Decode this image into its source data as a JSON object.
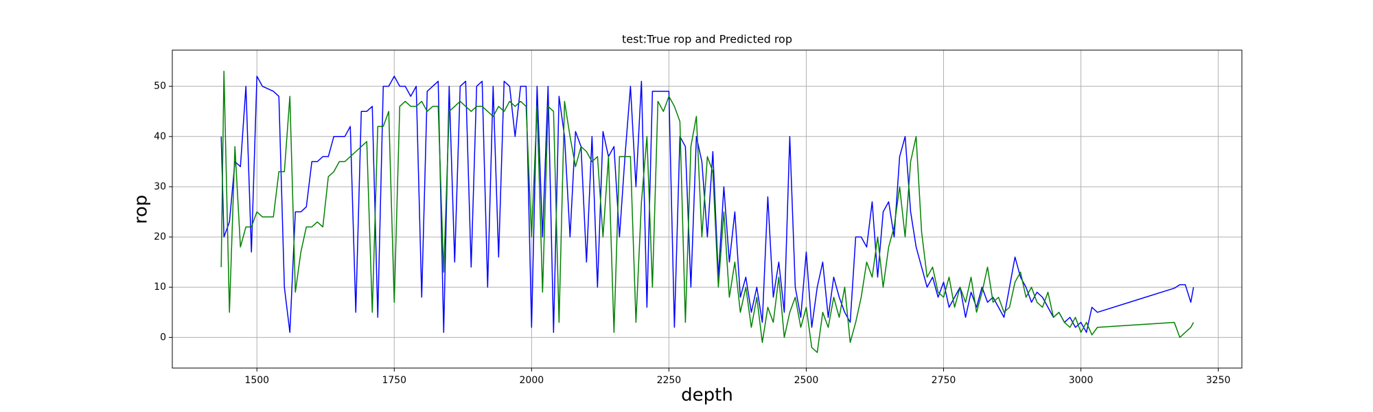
{
  "chart_data": {
    "type": "line",
    "title": "test:True rop and Predicted rop",
    "x_label": "depth",
    "y_label": "rop",
    "xlim": [
      1346,
      3293
    ],
    "xticks": [
      1500,
      1750,
      2000,
      2250,
      2500,
      2750,
      3000,
      3250
    ],
    "ylim": [
      -6.1,
      57.2
    ],
    "yticks": [
      0,
      10,
      20,
      30,
      40,
      50
    ],
    "grid": true,
    "x": [
      1435,
      1440,
      1450,
      1460,
      1470,
      1480,
      1490,
      1500,
      1510,
      1520,
      1530,
      1540,
      1550,
      1560,
      1570,
      1580,
      1590,
      1600,
      1610,
      1620,
      1630,
      1640,
      1650,
      1660,
      1670,
      1680,
      1690,
      1700,
      1710,
      1720,
      1730,
      1740,
      1750,
      1760,
      1770,
      1780,
      1790,
      1800,
      1810,
      1820,
      1830,
      1840,
      1850,
      1860,
      1870,
      1880,
      1890,
      1900,
      1910,
      1920,
      1930,
      1940,
      1950,
      1960,
      1970,
      1980,
      1990,
      2000,
      2010,
      2020,
      2030,
      2040,
      2050,
      2060,
      2070,
      2080,
      2090,
      2100,
      2110,
      2120,
      2130,
      2140,
      2150,
      2160,
      2170,
      2180,
      2190,
      2200,
      2210,
      2220,
      2230,
      2240,
      2250,
      2260,
      2270,
      2280,
      2290,
      2300,
      2310,
      2320,
      2330,
      2340,
      2350,
      2360,
      2370,
      2380,
      2390,
      2400,
      2410,
      2420,
      2430,
      2440,
      2450,
      2460,
      2470,
      2480,
      2490,
      2500,
      2510,
      2520,
      2530,
      2540,
      2550,
      2560,
      2570,
      2580,
      2590,
      2600,
      2610,
      2620,
      2630,
      2640,
      2650,
      2660,
      2670,
      2680,
      2690,
      2700,
      2710,
      2720,
      2730,
      2740,
      2750,
      2760,
      2770,
      2780,
      2790,
      2800,
      2810,
      2820,
      2830,
      2840,
      2850,
      2860,
      2870,
      2880,
      2890,
      2900,
      2910,
      2920,
      2930,
      2940,
      2950,
      2960,
      2970,
      2980,
      2990,
      3000,
      3010,
      3020,
      3030,
      3100,
      3170,
      3180,
      3190,
      3200,
      3205
    ],
    "series": [
      {
        "color": "#0000ff",
        "values": [
          40,
          20,
          23,
          35,
          34,
          50,
          17,
          52,
          50,
          49.5,
          49,
          48,
          10,
          1,
          25,
          25,
          26,
          35,
          35,
          36,
          36,
          40,
          40,
          40,
          42,
          5,
          45,
          45,
          46,
          4,
          50,
          50,
          52,
          50,
          50,
          48,
          50,
          8,
          49,
          50,
          51,
          1,
          50,
          15,
          50,
          51,
          14,
          50,
          51,
          10,
          50,
          16,
          51,
          50,
          40,
          50,
          50,
          2,
          50,
          20,
          50,
          1,
          48,
          40,
          20,
          41,
          38,
          15,
          40,
          10,
          41,
          36,
          38,
          20,
          36,
          50,
          30,
          51,
          6,
          49,
          49,
          49,
          49,
          2,
          40,
          38,
          10,
          40,
          35,
          20,
          37,
          12,
          30,
          15,
          25,
          8,
          12,
          5,
          10,
          3,
          28,
          8,
          15,
          5,
          40,
          10,
          4,
          17,
          2,
          10,
          15,
          4,
          12,
          8,
          5,
          3,
          20,
          20,
          18,
          27,
          12,
          25,
          27,
          20,
          36,
          40,
          25,
          18,
          14,
          10,
          12,
          8,
          11,
          6,
          8,
          10,
          4,
          9,
          6,
          10,
          7,
          8,
          6,
          4,
          10,
          16,
          12,
          10,
          7,
          9,
          8,
          6,
          4,
          5,
          3,
          4,
          2,
          3,
          1,
          6,
          5,
          7.4,
          9.8,
          10.5,
          10.5,
          7,
          10
        ]
      },
      {
        "color": "#008000",
        "values": [
          14,
          53,
          5,
          38,
          18,
          22,
          22,
          25,
          24,
          24,
          24,
          33,
          33,
          48,
          9,
          17,
          22,
          22,
          23,
          22,
          32,
          33,
          35,
          35,
          36,
          37,
          38,
          39,
          5,
          42,
          42,
          45,
          7,
          46,
          47,
          46,
          46,
          47,
          45,
          46,
          46,
          13,
          45,
          46,
          47,
          46,
          45,
          46,
          46,
          45,
          44,
          46,
          45,
          47,
          46,
          47,
          46,
          20,
          46,
          9,
          46,
          45,
          3,
          47,
          40,
          34,
          38,
          37,
          35,
          36,
          20,
          36,
          1,
          36,
          36,
          36,
          3,
          27,
          40,
          10,
          47,
          45,
          48,
          46,
          43,
          3,
          38,
          44,
          20,
          36,
          33,
          10,
          25,
          8,
          15,
          5,
          10,
          2,
          8,
          -1,
          6,
          3,
          12,
          0,
          5,
          8,
          2,
          6,
          -2,
          -3,
          5,
          2,
          8,
          4,
          10,
          -1,
          3,
          8,
          15,
          12,
          20,
          10,
          18,
          22,
          30,
          20,
          35,
          40,
          21,
          12,
          14,
          9,
          8,
          12,
          6,
          10,
          7,
          12,
          5,
          9,
          14,
          7,
          8,
          5,
          6,
          11,
          13,
          8,
          10,
          7,
          6,
          9,
          4,
          5,
          3,
          2,
          4,
          1,
          3,
          0.5,
          2,
          2.5,
          3,
          0,
          1,
          2,
          3
        ]
      }
    ]
  }
}
